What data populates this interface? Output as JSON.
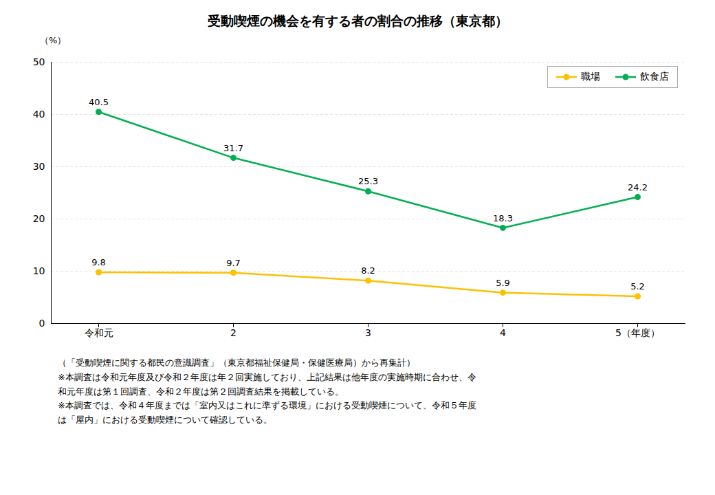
{
  "chart_data": {
    "type": "line",
    "title": "受動喫煙の機会を有する者の割合の推移（東京都）",
    "y_label": "（%）",
    "categories": [
      "令和元",
      "2",
      "3",
      "4",
      "5（年度）"
    ],
    "series": [
      {
        "name": "職場",
        "color": "#FFC000",
        "marker": "circle",
        "values": [
          9.8,
          9.7,
          8.2,
          5.9,
          5.2
        ]
      },
      {
        "name": "飲食店",
        "color": "#00B050",
        "marker": "circle",
        "values": [
          40.5,
          31.7,
          25.3,
          18.3,
          24.2
        ]
      }
    ],
    "ylim": [
      0,
      50
    ],
    "yticks": [
      0,
      10,
      20,
      30,
      40,
      50
    ],
    "grid": true,
    "legend": "upper right",
    "data_labels": true,
    "annotations": [
      "（「受動喫煙に関する都民の意識調査」（東京都福祉保健局・保健医療局）から再集計）",
      "※本調査は令和元年度及び令和２年度は年２回実施しており、上記結果は他年度の実施時期に合わせ、令",
      "和元年度は第１回調査、令和２年度は第２回調査結果を掲載している。",
      "※本調査では、令和４年度までは「室内又はこれに準ずる環境」における受動喫煙について、令和５年度",
      "は「屋内」における受動喫煙について確認している。"
    ]
  }
}
